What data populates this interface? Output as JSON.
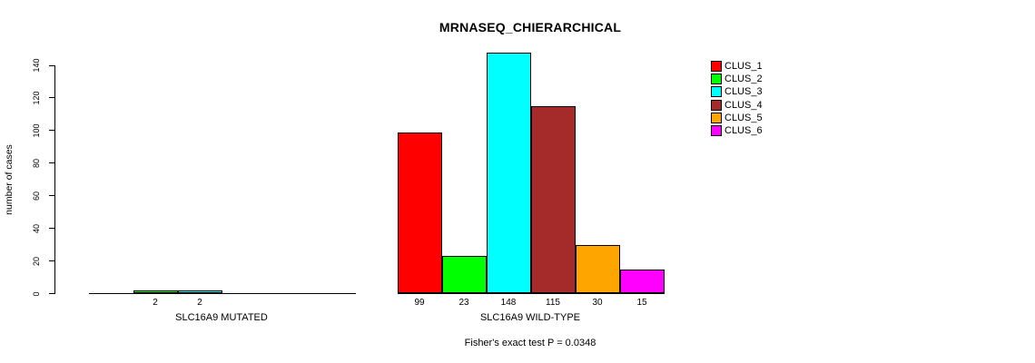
{
  "title": "MRNASEQ_CHIERARCHICAL",
  "chart_data": {
    "type": "bar",
    "title": "MRNASEQ_CHIERARCHICAL",
    "xlabel": "",
    "ylabel": "number of cases",
    "yticks": [
      0,
      20,
      40,
      60,
      80,
      100,
      120,
      140
    ],
    "ylim": [
      0,
      150
    ],
    "grid": false,
    "legend_position": "right-outside",
    "categories": [
      "CLUS_1",
      "CLUS_2",
      "CLUS_3",
      "CLUS_4",
      "CLUS_5",
      "CLUS_6"
    ],
    "colors": [
      "#ff0000",
      "#00ff00",
      "#00ffff",
      "#a52a2a",
      "#ffa500",
      "#ff00ff"
    ],
    "groups": [
      {
        "label": "SLC16A9 MUTATED",
        "values": [
          0,
          2,
          2,
          0,
          0,
          0
        ]
      },
      {
        "label": "SLC16A9 WILD-TYPE",
        "values": [
          99,
          23,
          148,
          115,
          30,
          15
        ]
      }
    ],
    "annotation": "Fisher's exact test P = 0.0348"
  }
}
